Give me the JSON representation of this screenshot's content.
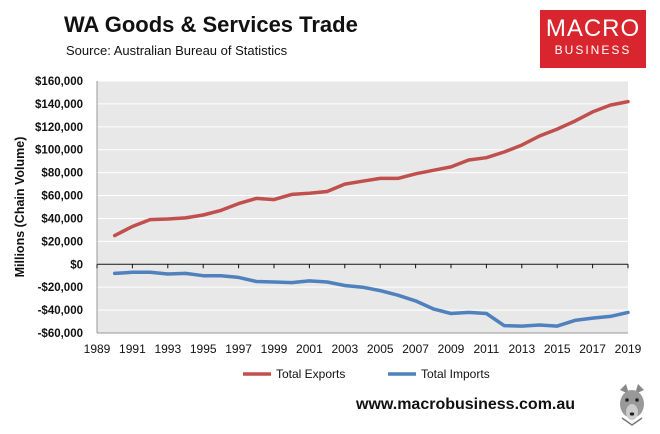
{
  "header": {
    "title": "WA Goods & Services Trade",
    "source": "Source:  Australian Bureau of Statistics"
  },
  "logo": {
    "line1": "MACRO",
    "line2": "BUSINESS"
  },
  "footer": {
    "website": "www.macrobusiness.com.au"
  },
  "colors": {
    "exports": "#c0504d",
    "imports": "#4f81bd",
    "brand": "#d9262e"
  },
  "chart_data": {
    "type": "line",
    "title": "WA Goods & Services Trade",
    "xlabel": "",
    "ylabel": "Millions (Chain Volume)",
    "x": [
      1990,
      1991,
      1992,
      1993,
      1994,
      1995,
      1996,
      1997,
      1998,
      1999,
      2000,
      2001,
      2002,
      2003,
      2004,
      2005,
      2006,
      2007,
      2008,
      2009,
      2010,
      2011,
      2012,
      2013,
      2014,
      2015,
      2016,
      2017,
      2018,
      2019
    ],
    "series": [
      {
        "name": "Total Exports",
        "values": [
          25000,
          33000,
          39000,
          39500,
          40500,
          43000,
          47000,
          53000,
          57500,
          56500,
          61000,
          62000,
          63500,
          70000,
          72500,
          75000,
          75000,
          79000,
          82000,
          85000,
          91000,
          93000,
          98000,
          104000,
          112000,
          118000,
          125000,
          133000,
          139000,
          142000
        ]
      },
      {
        "name": "Total Imports",
        "values": [
          -8000,
          -7000,
          -7000,
          -8500,
          -8000,
          -10000,
          -10000,
          -11500,
          -15000,
          -15500,
          -16000,
          -14500,
          -15500,
          -18500,
          -20000,
          -23000,
          -27000,
          -32000,
          -39000,
          -43000,
          -42000,
          -43000,
          -53500,
          -54000,
          -53000,
          -54000,
          -49000,
          -47000,
          -45500,
          -42000
        ]
      }
    ],
    "ylim": [
      -60000,
      160000
    ],
    "yticks": [
      -60000,
      -40000,
      -20000,
      0,
      20000,
      40000,
      60000,
      80000,
      100000,
      120000,
      140000,
      160000
    ],
    "ytick_labels": [
      "-$60,000",
      "-$40,000",
      "-$20,000",
      "$0",
      "$20,000",
      "$40,000",
      "$60,000",
      "$80,000",
      "$100,000",
      "$120,000",
      "$140,000",
      "$160,000"
    ],
    "xlim": [
      1989,
      2019
    ],
    "xticks": [
      1989,
      1991,
      1993,
      1995,
      1997,
      1999,
      2001,
      2003,
      2005,
      2007,
      2009,
      2011,
      2013,
      2015,
      2017,
      2019
    ],
    "xtick_labels": [
      "1989",
      "1991",
      "1993",
      "1995",
      "1997",
      "1999",
      "2001",
      "2003",
      "2005",
      "2007",
      "2009",
      "2011",
      "2013",
      "2015",
      "2017",
      "2019"
    ],
    "grid": true,
    "legend": "bottom"
  }
}
